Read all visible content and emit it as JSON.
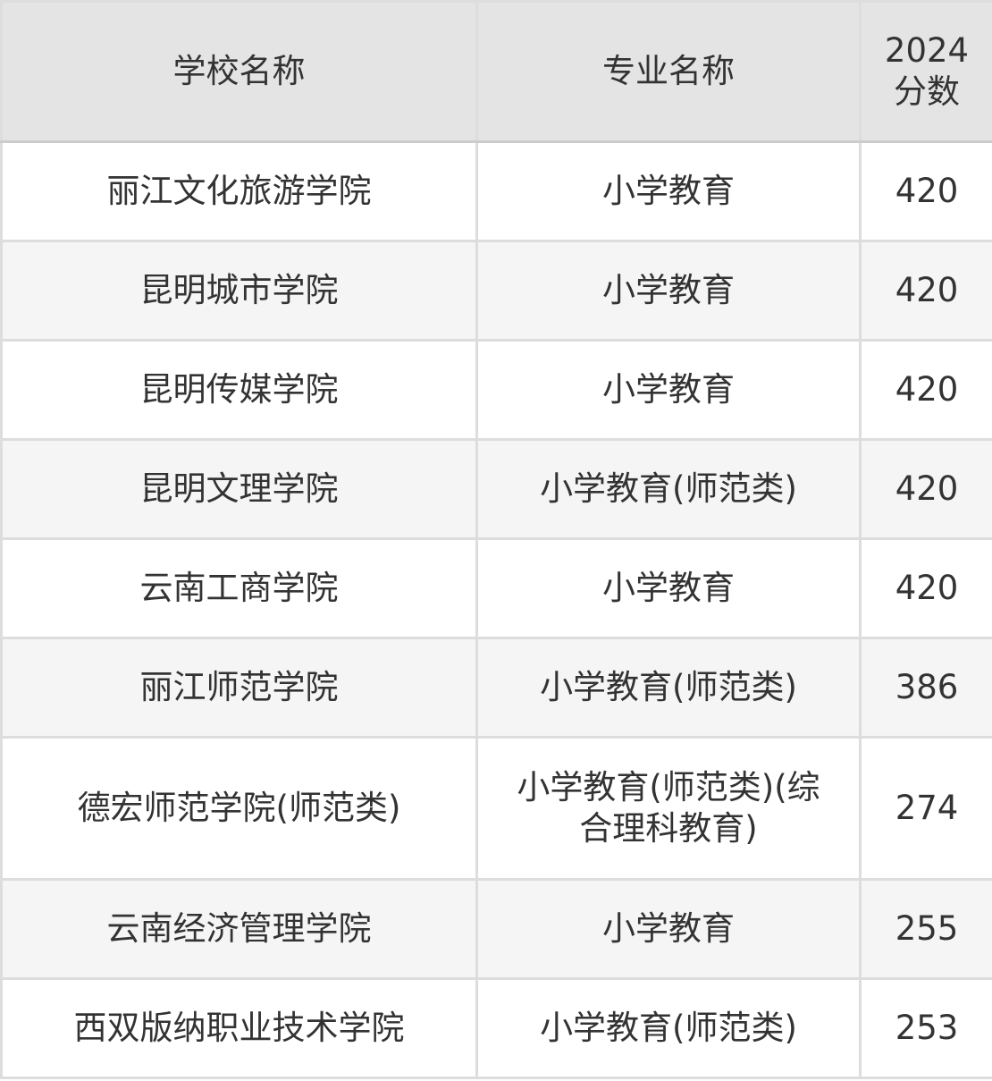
{
  "headers": [
    "学校名称",
    "专业名称",
    "2024分数"
  ],
  "header_score_lines": [
    "2024",
    "分数"
  ],
  "rows": [
    {
      "school": "丽江文化旅游学院",
      "major": "小学教育",
      "score": "420"
    },
    {
      "school": "昆明城市学院",
      "major": "小学教育",
      "score": "420"
    },
    {
      "school": "昆明传媒学院",
      "major": "小学教育",
      "score": "420"
    },
    {
      "school": "昆明文理学院",
      "major": "小学教育(师范类)",
      "score": "420"
    },
    {
      "school": "云南工商学院",
      "major": "小学教育",
      "score": "420"
    },
    {
      "school": "丽江师范学院",
      "major": "小学教育(师范类)",
      "score": "386"
    },
    {
      "school": "德宏师范学院(师范类)",
      "major": "小学教育(师范类)(综合理科教育)",
      "score": "274"
    },
    {
      "school": "云南经济管理学院",
      "major": "小学教育",
      "score": "255"
    },
    {
      "school": "西双版纳职业技术学院",
      "major": "小学教育(师范类)",
      "score": "253"
    }
  ]
}
